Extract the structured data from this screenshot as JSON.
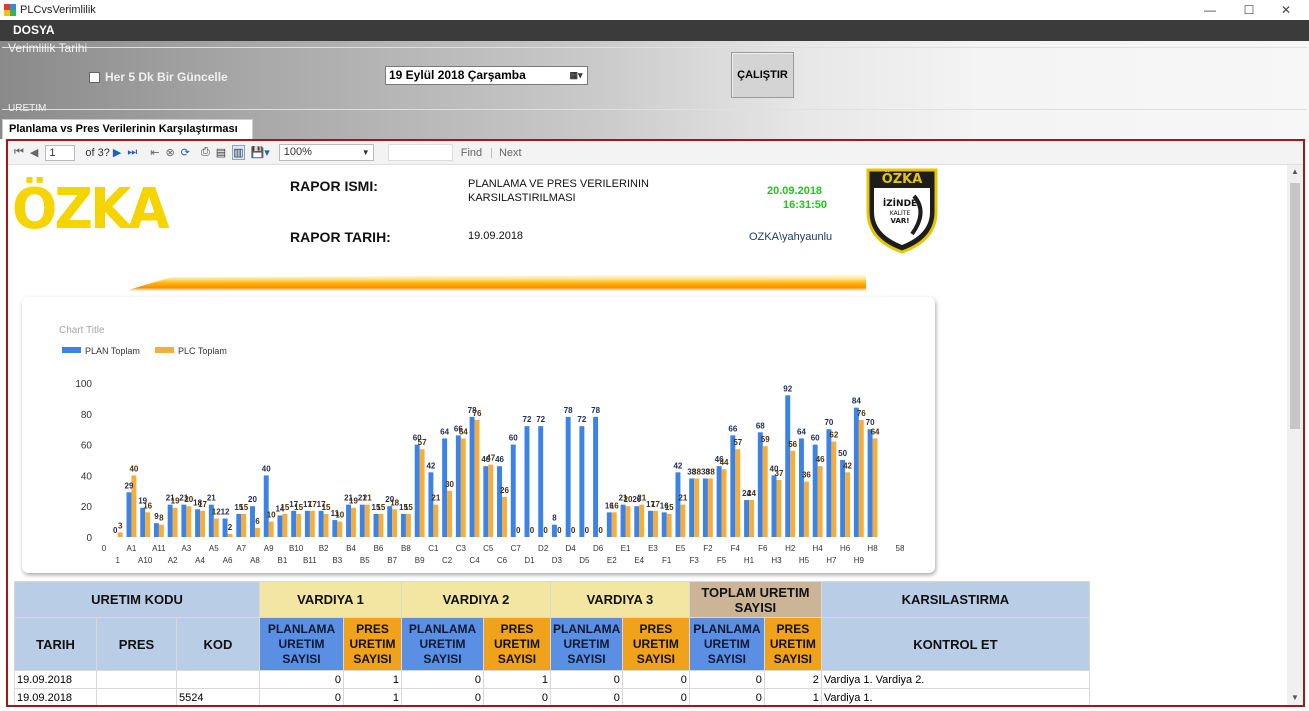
{
  "window": {
    "title": "PLCvsVerimlilik",
    "minimize": "—",
    "maximize": "☐",
    "close": "✕"
  },
  "menu": {
    "dosya": "DOSYA"
  },
  "groups": {
    "verimlilik": "Verimlilik Tarihi",
    "uretim": "URETIM"
  },
  "filters": {
    "auto_update_label": "Her 5 Dk Bir Güncelle",
    "auto_update_checked": false,
    "date_value": "19   Eylül   2018 Çarşamba",
    "run_label": "ÇALIŞTIR"
  },
  "tab": {
    "label": "Planlama vs Pres Verilerinin Karşılaştırması"
  },
  "viewer": {
    "page": "1",
    "of_pages": "of 3?",
    "zoom": "100%",
    "find": "Find",
    "next": "Next"
  },
  "report": {
    "logo": "ÖZKA",
    "name_label": "RAPOR ISMI:",
    "name_value_1": "PLANLAMA VE PRES VERILERININ",
    "name_value_2": "KARSILASTIRILMASI",
    "date_label": "RAPOR TARIH:",
    "date_value": "19.09.2018",
    "print_date": "20.09.2018",
    "print_time": "16:31:50",
    "user": "OZKA\\yahyaunlu",
    "badge_top": "ÖZKA",
    "badge_l1": "İZİNDE",
    "badge_l2": "KALİTE",
    "badge_l3": "VAR!"
  },
  "chart_data": {
    "type": "bar",
    "title": "Chart Title",
    "legend": [
      "PLAN Toplam",
      "PLC Toplam"
    ],
    "colors": {
      "plan": "#3b83e6",
      "plc": "#f5ad3c"
    },
    "ylim": [
      0,
      100
    ],
    "yticks": [
      0,
      20,
      40,
      60,
      80,
      100
    ],
    "xtick_top": [
      "0",
      "A1",
      "A11",
      "A3",
      "A5",
      "A7",
      "A9",
      "B10",
      "B2",
      "B4",
      "B6",
      "B8",
      "C1",
      "C3",
      "C5",
      "C7",
      "D2",
      "D4",
      "D6",
      "E1",
      "E3",
      "E5",
      "F2",
      "F4",
      "F6",
      "H2",
      "H4",
      "H6",
      "H8",
      "58"
    ],
    "xtick_bottom": [
      "1",
      "A10",
      "A2",
      "A4",
      "A6",
      "A8",
      "B1",
      "B11",
      "B3",
      "B5",
      "B7",
      "B9",
      "C2",
      "C4",
      "C6",
      "D1",
      "D3",
      "D5",
      "E2",
      "E4",
      "F1",
      "F3",
      "F5",
      "H1",
      "H3",
      "H5",
      "H7",
      "H9"
    ],
    "plan": [
      0,
      29,
      19,
      9,
      21,
      21,
      18,
      21,
      12,
      15,
      20,
      40,
      14,
      17,
      17,
      17,
      11,
      21,
      21,
      15,
      20,
      15,
      60,
      42,
      64,
      66,
      78,
      46,
      46,
      60,
      72,
      72,
      8,
      78,
      72,
      78,
      16,
      21,
      20,
      17,
      16,
      42,
      38,
      38,
      46,
      66,
      24,
      68,
      40,
      92,
      64,
      60,
      70,
      50,
      84,
      70
    ],
    "plc": [
      3,
      40,
      16,
      8,
      19,
      20,
      17,
      12,
      2,
      15,
      6,
      10,
      15,
      15,
      17,
      15,
      10,
      19,
      21,
      15,
      18,
      15,
      57,
      21,
      30,
      64,
      76,
      47,
      26,
      0,
      0,
      0,
      0,
      0,
      0,
      0,
      16,
      20,
      21,
      17,
      15,
      21,
      38,
      38,
      44,
      57,
      24,
      59,
      37,
      56,
      36,
      46,
      62,
      42,
      76,
      64
    ]
  },
  "table": {
    "headers": {
      "uretim_kodu": "URETIM KODU",
      "vardiya1": "VARDIYA 1",
      "vardiya2": "VARDIYA 2",
      "vardiya3": "VARDIYA 3",
      "toplam": "TOPLAM URETIM SAYISI",
      "karsilastirma": "KARSILASTIRMA",
      "tarih": "TARIH",
      "pres": "PRES",
      "kod": "KOD",
      "planlama": "PLANLAMA URETIM SAYISI",
      "pres_uretim": "PRES URETIM SAYISI",
      "kontrol": "KONTROL ET"
    },
    "rows": [
      {
        "tarih": "19.09.2018",
        "pres": "",
        "kod": "",
        "v1p": "0",
        "v1r": "1",
        "v2p": "0",
        "v2r": "1",
        "v3p": "0",
        "v3r": "0",
        "tp": "0",
        "tr": "2",
        "kontrol": "Vardiya 1. Vardiya 2."
      },
      {
        "tarih": "19.09.2018",
        "pres": "",
        "kod": "5524",
        "v1p": "0",
        "v1r": "1",
        "v2p": "0",
        "v2r": "0",
        "v3p": "0",
        "v3r": "0",
        "tp": "0",
        "tr": "1",
        "kontrol": "Vardiya 1."
      }
    ]
  }
}
